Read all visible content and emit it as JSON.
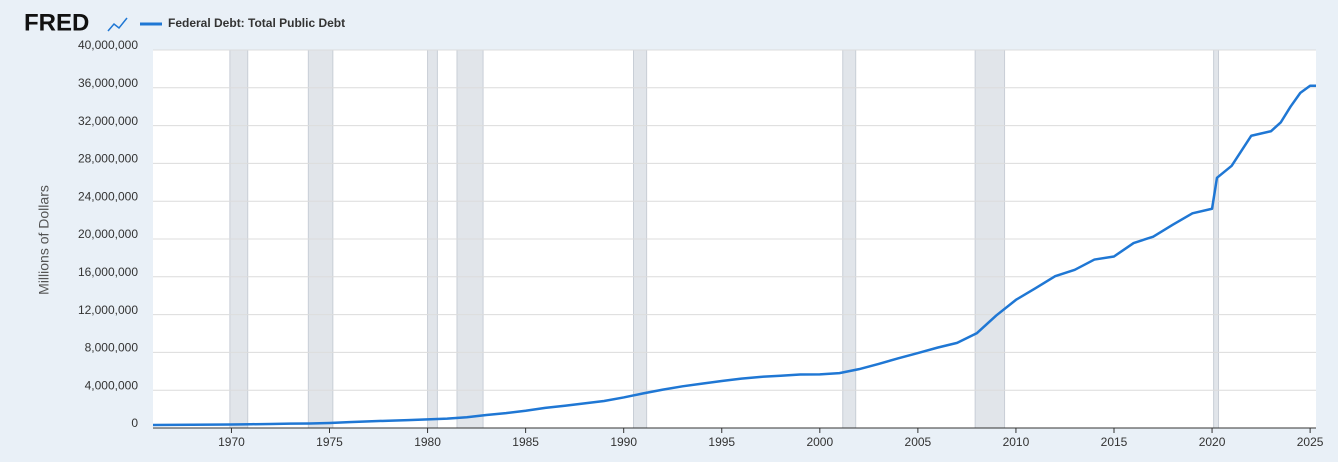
{
  "logo": "FRED",
  "chart_data": {
    "type": "line",
    "ylabel": "Millions of Dollars",
    "x": [
      1966,
      1967,
      1968,
      1969,
      1970,
      1971,
      1972,
      1973,
      1974,
      1975,
      1976,
      1977,
      1978,
      1979,
      1980,
      1981,
      1982,
      1983,
      1984,
      1985,
      1986,
      1987,
      1988,
      1989,
      1990,
      1991,
      1992,
      1993,
      1994,
      1995,
      1996,
      1997,
      1998,
      1999,
      2000,
      2001,
      2002,
      2003,
      2004,
      2005,
      2006,
      2007,
      2008,
      2009,
      2010,
      2011,
      2012,
      2013,
      2014,
      2015,
      2016,
      2017,
      2018,
      2019,
      2020,
      2020.25,
      2021,
      2022,
      2023,
      2023.5,
      2024,
      2024.5,
      2025,
      2025.3
    ],
    "series": [
      {
        "name": "Federal Debt: Total Public Debt",
        "color": "#1f77d4",
        "values": [
          320000,
          326000,
          348000,
          354000,
          371000,
          398000,
          427000,
          458000,
          475000,
          533000,
          620000,
          699000,
          772000,
          827000,
          908000,
          998000,
          1142000,
          1377000,
          1572000,
          1823000,
          2125000,
          2350000,
          2602000,
          2857000,
          3233000,
          3665000,
          4065000,
          4411000,
          4693000,
          4974000,
          5225000,
          5413000,
          5526000,
          5656000,
          5674000,
          5807000,
          6228000,
          6783000,
          7379000,
          7933000,
          8507000,
          9008000,
          10025000,
          11910000,
          13562000,
          14790000,
          16066000,
          16738000,
          17824000,
          18151000,
          19573000,
          20245000,
          21516000,
          22719000,
          23201000,
          26477000,
          27748000,
          30928000,
          31400000,
          32330000,
          34001000,
          35465000,
          36219000,
          36215000
        ]
      }
    ],
    "recessions": [
      [
        1969.92,
        1970.83
      ],
      [
        1973.92,
        1975.17
      ],
      [
        1980.0,
        1980.5
      ],
      [
        1981.5,
        1982.83
      ],
      [
        1990.5,
        1991.17
      ],
      [
        2001.17,
        2001.83
      ],
      [
        2007.92,
        2009.42
      ],
      [
        2020.08,
        2020.33
      ]
    ],
    "xlim": [
      1966,
      2025.3
    ],
    "xticks": [
      1970,
      1975,
      1980,
      1985,
      1990,
      1995,
      2000,
      2005,
      2010,
      2015,
      2020,
      2025
    ],
    "ylim": [
      0,
      40000000
    ],
    "yticks": [
      0,
      {
        "value": 4000000,
        "label": "4,000,000"
      },
      {
        "value": 8000000,
        "label": "8,000,000"
      },
      {
        "value": 12000000,
        "label": "12,000,000"
      },
      {
        "value": 16000000,
        "label": "16,000,000"
      },
      {
        "value": 20000000,
        "label": "20,000,000"
      },
      {
        "value": 24000000,
        "label": "24,000,000"
      },
      {
        "value": 28000000,
        "label": "28,000,000"
      },
      {
        "value": 32000000,
        "label": "32,000,000"
      },
      {
        "value": 36000000,
        "label": "36,000,000"
      },
      {
        "value": 40000000,
        "label": "40,000,000"
      }
    ],
    "grid": true
  }
}
